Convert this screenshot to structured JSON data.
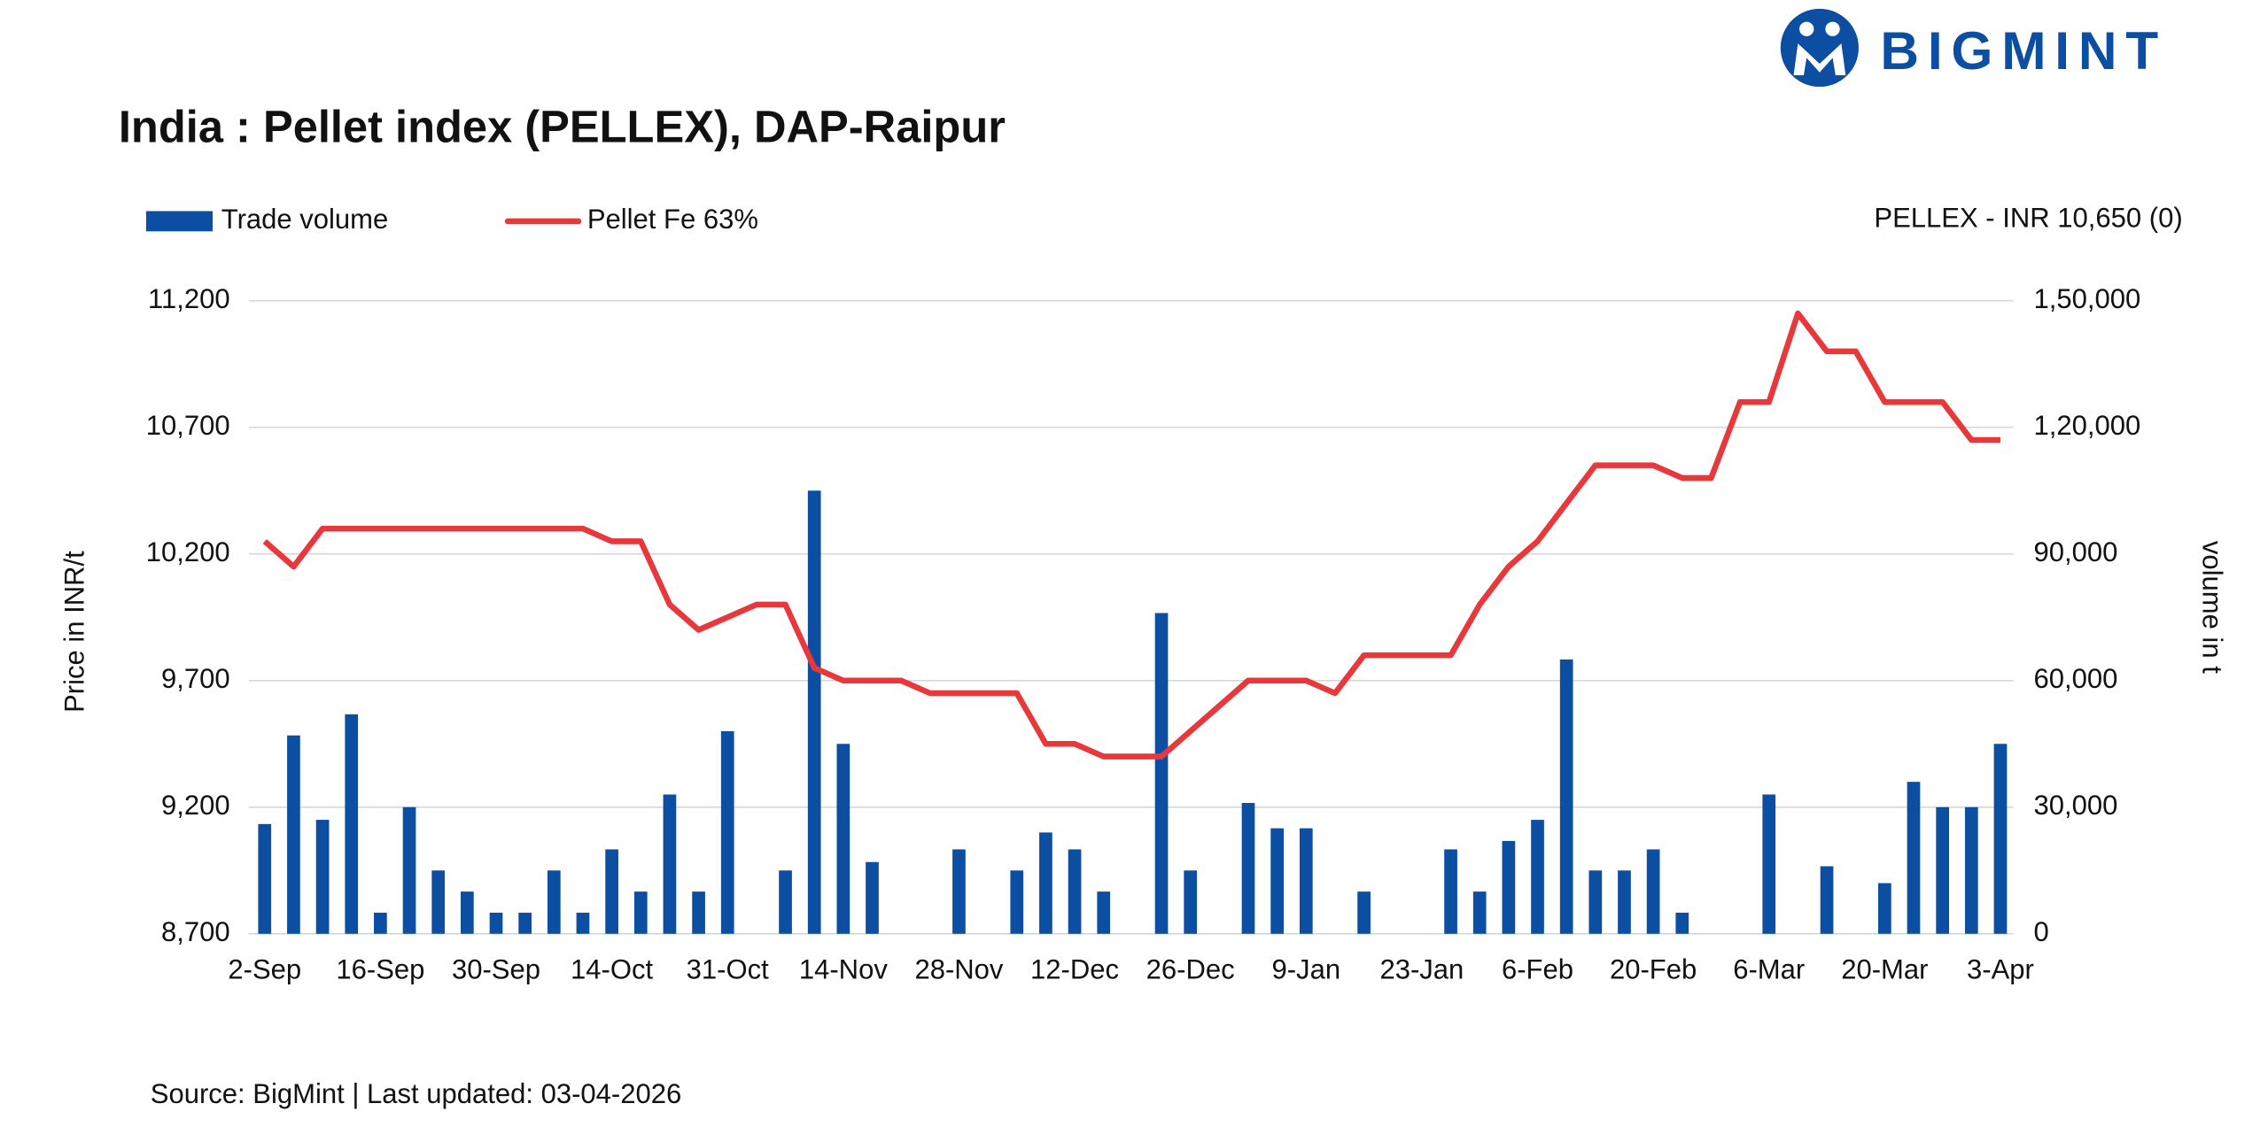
{
  "logo": "BIGMINT",
  "chart_data": {
    "type": "combo",
    "title": "India : Pellet index (PELLEX), DAP-Raipur",
    "annotation": "PELLEX - INR 10,650 (0)",
    "source": "Source: BigMint | Last updated: 03-04-2026",
    "ylabel": "Price in INR/t",
    "y2label": "volume in t",
    "grid": true,
    "legend": "top-left",
    "categories": [
      "2-Sep",
      null,
      null,
      null,
      "16-Sep",
      null,
      null,
      null,
      "30-Sep",
      null,
      null,
      null,
      "14-Oct",
      null,
      null,
      null,
      "31-Oct",
      null,
      null,
      null,
      "14-Nov",
      null,
      null,
      null,
      "28-Nov",
      null,
      null,
      null,
      "12-Dec",
      null,
      null,
      null,
      "26-Dec",
      null,
      null,
      null,
      "9-Jan",
      null,
      null,
      null,
      "23-Jan",
      null,
      null,
      null,
      "6-Feb",
      null,
      null,
      null,
      "20-Feb",
      null,
      null,
      null,
      "6-Mar",
      null,
      null,
      null,
      "20-Mar",
      null,
      null,
      null,
      "3-Apr"
    ],
    "ylim": [
      8700,
      11200
    ],
    "yticks": [
      {
        "value": 8700,
        "label": "8,700"
      },
      {
        "value": 9200,
        "label": "9,200"
      },
      {
        "value": 9700,
        "label": "9,700"
      },
      {
        "value": 10200,
        "label": "10,200"
      },
      {
        "value": 10700,
        "label": "10,700"
      },
      {
        "value": 11200,
        "label": "11,200"
      }
    ],
    "y2lim": [
      0,
      150000
    ],
    "y2ticks": [
      0,
      {
        "value": 30000,
        "label": "30,000"
      },
      {
        "value": 60000,
        "label": "60,000"
      },
      {
        "value": 90000,
        "label": "90,000"
      },
      {
        "value": 120000,
        "label": "1,20,000"
      },
      {
        "value": 150000,
        "label": "1,50,000"
      }
    ],
    "series": [
      {
        "name": "Trade volume",
        "type": "bar",
        "axis": "y2",
        "color": "#0b4ea2",
        "values": [
          26000,
          47000,
          27000,
          52000,
          5000,
          30000,
          15000,
          10000,
          5000,
          5000,
          15000,
          5000,
          20000,
          10000,
          33000,
          10000,
          48000,
          0,
          15000,
          105000,
          45000,
          17000,
          0,
          0,
          20000,
          0,
          15000,
          24000,
          20000,
          10000,
          0,
          76000,
          15000,
          0,
          31000,
          25000,
          25000,
          0,
          10000,
          0,
          0,
          20000,
          10000,
          22000,
          27000,
          65000,
          15000,
          15000,
          20000,
          5000,
          0,
          0,
          33000,
          0,
          16000,
          0,
          12000,
          36000,
          30000,
          30000,
          45000
        ]
      },
      {
        "name": "Pellet Fe 63%",
        "type": "line",
        "color": "#e8383b",
        "values": [
          10250,
          10150,
          10300,
          10300,
          10300,
          10300,
          10300,
          10300,
          10300,
          10300,
          10300,
          10300,
          10250,
          10250,
          10000,
          9900,
          9950,
          10000,
          10000,
          9750,
          9700,
          9700,
          9700,
          9650,
          9650,
          9650,
          9650,
          9450,
          9450,
          9400,
          9400,
          9400,
          9500,
          9600,
          9700,
          9700,
          9700,
          9650,
          9800,
          9800,
          9800,
          9800,
          10000,
          10150,
          10250,
          10400,
          10550,
          10550,
          10550,
          10500,
          10500,
          10800,
          10800,
          11150,
          11000,
          11000,
          10800,
          10800,
          10800,
          10650,
          10650
        ]
      }
    ]
  }
}
